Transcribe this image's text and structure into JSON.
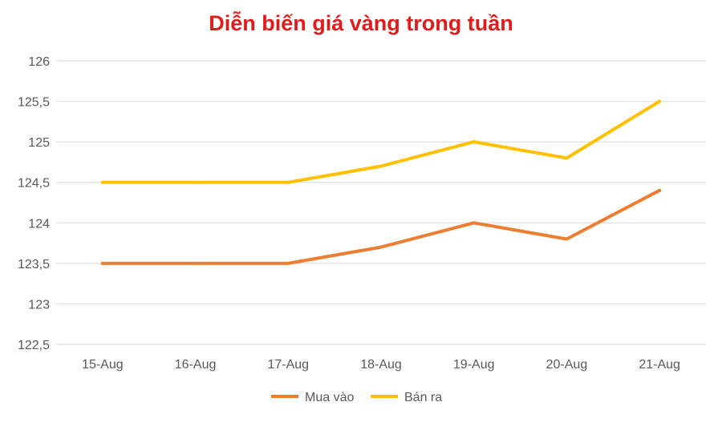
{
  "chart_data": {
    "type": "line",
    "title": "Diễn biến giá vàng trong tuần",
    "categories": [
      "15-Aug",
      "16-Aug",
      "17-Aug",
      "18-Aug",
      "19-Aug",
      "20-Aug",
      "21-Aug"
    ],
    "y_ticks": [
      "122,5",
      "123",
      "123,5",
      "124",
      "124,5",
      "125",
      "125,5",
      "126"
    ],
    "ylim": [
      122.5,
      126
    ],
    "grid": true,
    "legend_position": "bottom",
    "series": [
      {
        "name": "Mua vào",
        "color": "#ed7d31",
        "values": [
          123.5,
          123.5,
          123.5,
          123.7,
          124.0,
          123.8,
          124.4
        ]
      },
      {
        "name": "Bán ra",
        "color": "#ffc000",
        "values": [
          124.5,
          124.5,
          124.5,
          124.7,
          125.0,
          124.8,
          125.5
        ]
      }
    ]
  }
}
